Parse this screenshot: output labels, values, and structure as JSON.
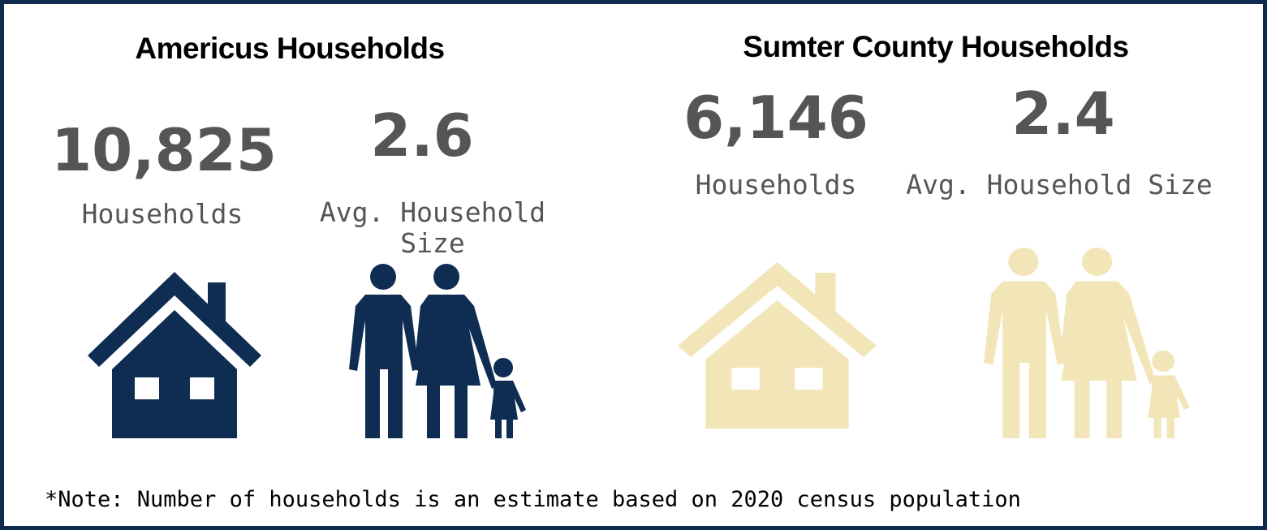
{
  "sections": [
    {
      "title": "Americus Households",
      "stats": [
        {
          "value": "10,825",
          "label": "Households"
        },
        {
          "value": "2.6",
          "label": "Avg. Household Size"
        }
      ]
    },
    {
      "title": "Sumter County Households",
      "stats": [
        {
          "value": "6,146",
          "label": "Households"
        },
        {
          "value": "2.4",
          "label": "Avg. Household Size"
        }
      ]
    }
  ],
  "note": "*Note: Number of households is an estimate based on 2020 census population"
}
